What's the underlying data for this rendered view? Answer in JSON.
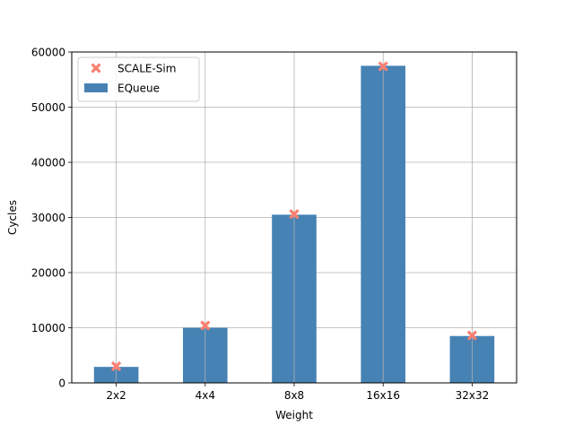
{
  "chart_data": {
    "type": "bar",
    "xlabel": "Weight",
    "ylabel": "Cycles",
    "categories": [
      "2x2",
      "4x4",
      "8x8",
      "16x16",
      "32x32"
    ],
    "ylim": [
      0,
      60000
    ],
    "yticks": [
      0,
      10000,
      20000,
      30000,
      40000,
      50000,
      60000
    ],
    "grid": true,
    "legend_position": "top-left",
    "series": [
      {
        "name": "SCALE-Sim",
        "kind": "marker",
        "marker": "x",
        "color": "#fa8072",
        "values": [
          3000,
          10400,
          30600,
          57400,
          8600
        ]
      },
      {
        "name": "EQueue",
        "kind": "bar",
        "color": "#4682b4",
        "values": [
          2900,
          10000,
          30500,
          57500,
          8500
        ]
      }
    ]
  }
}
